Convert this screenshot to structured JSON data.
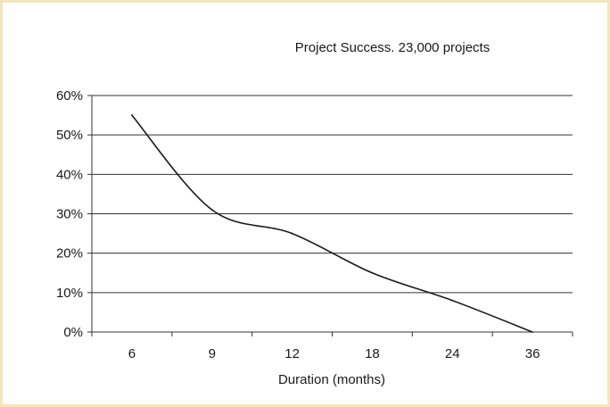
{
  "chart_data": {
    "type": "line",
    "title": "Project Success. 23,000 projects",
    "xlabel": "Duration (months)",
    "ylabel": "",
    "categories": [
      "6",
      "9",
      "12",
      "18",
      "24",
      "36"
    ],
    "series": [
      {
        "values": [
          0.55,
          0.31,
          0.25,
          0.15,
          0.08,
          0.0
        ]
      }
    ],
    "y_ticks": [
      "0%",
      "10%",
      "20%",
      "30%",
      "40%",
      "50%",
      "60%"
    ],
    "ylim": [
      0,
      0.6
    ],
    "grid": true,
    "legend": "none",
    "colors": {
      "line": "#1a1a1a",
      "grid": "#333333",
      "border": "#f3e6b8",
      "background": "#ffffff"
    }
  }
}
